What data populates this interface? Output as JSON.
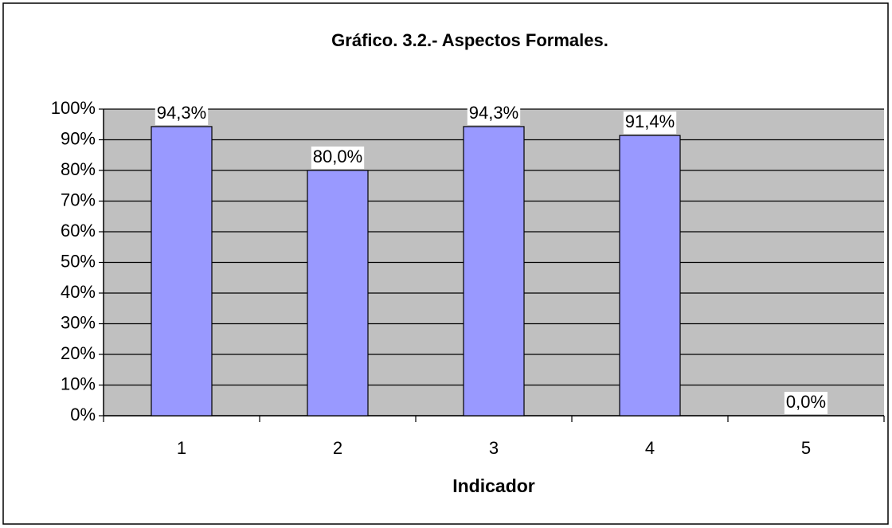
{
  "chart_data": {
    "type": "bar",
    "title": "Gráfico. 3.2.- Aspectos Formales.",
    "x_label": "Indicador",
    "categories": [
      "1",
      "2",
      "3",
      "4",
      "5"
    ],
    "values": [
      94.3,
      80.0,
      94.3,
      91.4,
      0.0
    ],
    "value_labels": [
      "94,3%",
      "80,0%",
      "94,3%",
      "91,4%",
      "0,0%"
    ],
    "color": "#9999ff",
    "ylim": [
      0,
      100
    ],
    "yticks": [
      {
        "value": 0,
        "label": "0%"
      },
      {
        "value": 10,
        "label": "10%"
      },
      {
        "value": 20,
        "label": "20%"
      },
      {
        "value": 30,
        "label": "30%"
      },
      {
        "value": 40,
        "label": "40%"
      },
      {
        "value": 50,
        "label": "50%"
      },
      {
        "value": 60,
        "label": "60%"
      },
      {
        "value": 70,
        "label": "70%"
      },
      {
        "value": 80,
        "label": "80%"
      },
      {
        "value": 90,
        "label": "90%"
      },
      {
        "value": 100,
        "label": "100%"
      }
    ],
    "grid": true
  }
}
